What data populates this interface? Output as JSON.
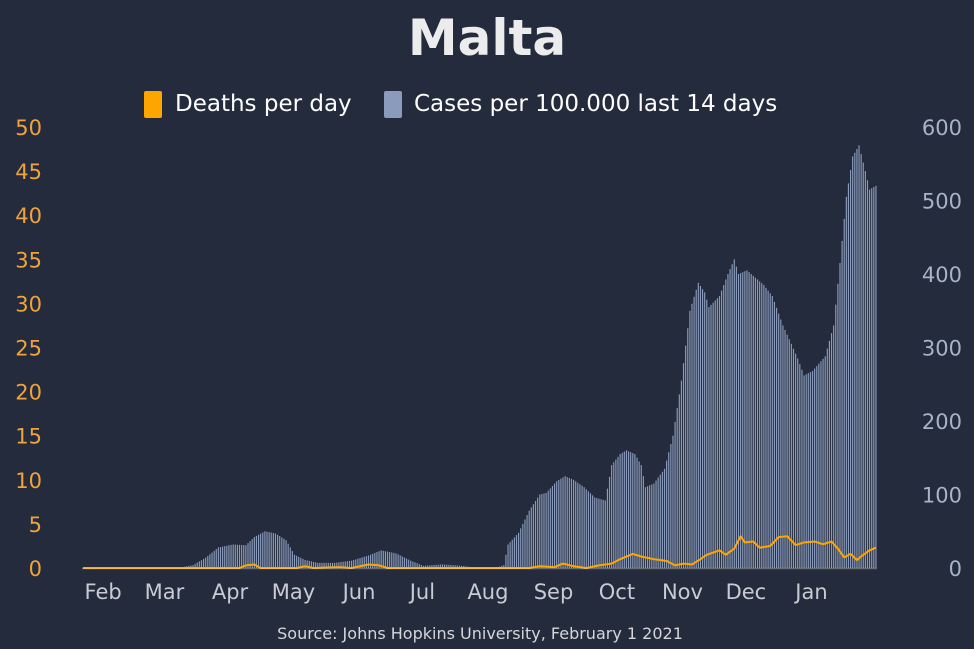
{
  "chart_data": {
    "type": "bar",
    "title": "Malta",
    "source": "Source: Johns Hopkins University, February 1 2021",
    "legend": [
      "Deaths per day",
      "Cases per 100.000 last 14 days"
    ],
    "x_ticks": [
      "Feb",
      "Mar",
      "Apr",
      "May",
      "Jun",
      "Jul",
      "Aug",
      "Sep",
      "Oct",
      "Nov",
      "Dec",
      "Jan"
    ],
    "y_left": {
      "ticks": [
        "0",
        "5",
        "10",
        "15",
        "20",
        "25",
        "30",
        "35",
        "40",
        "45",
        "50"
      ],
      "lim": [
        0,
        50
      ]
    },
    "y_right": {
      "ticks": [
        "0",
        "100",
        "200",
        "300",
        "400",
        "500",
        "600"
      ],
      "lim": [
        0,
        600
      ]
    },
    "date_start": "2020-01-22",
    "date_end": "2021-01-31",
    "colors": {
      "deaths": "#ffa500",
      "cases": "#8a9bbb",
      "left_axis": "#f0a33c",
      "right_axis": "#a7b3c7"
    },
    "series": [
      {
        "name": "Cases per 100.000 last 14 days",
        "axis": "right",
        "kind": "bars",
        "keypoints": [
          [
            "2020-01-22",
            0
          ],
          [
            "2020-03-07",
            0
          ],
          [
            "2020-03-14",
            4
          ],
          [
            "2020-03-20",
            14
          ],
          [
            "2020-03-26",
            28
          ],
          [
            "2020-04-02",
            32
          ],
          [
            "2020-04-08",
            31
          ],
          [
            "2020-04-12",
            42
          ],
          [
            "2020-04-17",
            50
          ],
          [
            "2020-04-22",
            47
          ],
          [
            "2020-04-27",
            38
          ],
          [
            "2020-05-01",
            18
          ],
          [
            "2020-05-06",
            11
          ],
          [
            "2020-05-12",
            7
          ],
          [
            "2020-05-20",
            7
          ],
          [
            "2020-05-28",
            10
          ],
          [
            "2020-06-05",
            17
          ],
          [
            "2020-06-11",
            24
          ],
          [
            "2020-06-18",
            20
          ],
          [
            "2020-06-25",
            10
          ],
          [
            "2020-07-01",
            3
          ],
          [
            "2020-07-10",
            5
          ],
          [
            "2020-07-19",
            3
          ],
          [
            "2020-07-27",
            0
          ],
          [
            "2020-08-04",
            0
          ],
          [
            "2020-08-08",
            4
          ],
          [
            "2020-08-10",
            32
          ],
          [
            "2020-08-15",
            48
          ],
          [
            "2020-08-20",
            78
          ],
          [
            "2020-08-25",
            100
          ],
          [
            "2020-08-28",
            102
          ],
          [
            "2020-09-02",
            118
          ],
          [
            "2020-09-06",
            125
          ],
          [
            "2020-09-10",
            120
          ],
          [
            "2020-09-15",
            110
          ],
          [
            "2020-09-20",
            96
          ],
          [
            "2020-09-25",
            92
          ],
          [
            "2020-09-28",
            140
          ],
          [
            "2020-10-02",
            155
          ],
          [
            "2020-10-05",
            160
          ],
          [
            "2020-10-09",
            155
          ],
          [
            "2020-10-12",
            140
          ],
          [
            "2020-10-14",
            110
          ],
          [
            "2020-10-18",
            115
          ],
          [
            "2020-10-23",
            135
          ],
          [
            "2020-10-27",
            180
          ],
          [
            "2020-10-31",
            255
          ],
          [
            "2020-11-04",
            350
          ],
          [
            "2020-11-08",
            388
          ],
          [
            "2020-11-11",
            375
          ],
          [
            "2020-11-13",
            355
          ],
          [
            "2020-11-18",
            370
          ],
          [
            "2020-11-22",
            400
          ],
          [
            "2020-11-25",
            420
          ],
          [
            "2020-11-27",
            400
          ],
          [
            "2020-12-01",
            405
          ],
          [
            "2020-12-05",
            395
          ],
          [
            "2020-12-09",
            385
          ],
          [
            "2020-12-13",
            370
          ],
          [
            "2020-12-18",
            330
          ],
          [
            "2020-12-22",
            305
          ],
          [
            "2020-12-25",
            285
          ],
          [
            "2020-12-28",
            262
          ],
          [
            "2021-01-01",
            268
          ],
          [
            "2021-01-04",
            278
          ],
          [
            "2021-01-07",
            288
          ],
          [
            "2021-01-11",
            330
          ],
          [
            "2021-01-14",
            415
          ],
          [
            "2021-01-17",
            505
          ],
          [
            "2021-01-20",
            560
          ],
          [
            "2021-01-23",
            575
          ],
          [
            "2021-01-26",
            540
          ],
          [
            "2021-01-28",
            515
          ],
          [
            "2021-01-31",
            520
          ]
        ]
      },
      {
        "name": "Deaths per day",
        "axis": "left",
        "kind": "line",
        "keypoints": [
          [
            "2020-01-22",
            0
          ],
          [
            "2020-04-05",
            0
          ],
          [
            "2020-04-08",
            0.3
          ],
          [
            "2020-04-12",
            0.4
          ],
          [
            "2020-04-15",
            0
          ],
          [
            "2020-05-02",
            0
          ],
          [
            "2020-05-06",
            0.2
          ],
          [
            "2020-05-10",
            0
          ],
          [
            "2020-05-22",
            0.1
          ],
          [
            "2020-05-28",
            0
          ],
          [
            "2020-06-05",
            0.4
          ],
          [
            "2020-06-10",
            0.3
          ],
          [
            "2020-06-14",
            0
          ],
          [
            "2020-08-20",
            0
          ],
          [
            "2020-08-25",
            0.2
          ],
          [
            "2020-09-01",
            0.1
          ],
          [
            "2020-09-05",
            0.5
          ],
          [
            "2020-09-10",
            0.2
          ],
          [
            "2020-09-16",
            0
          ],
          [
            "2020-09-22",
            0.3
          ],
          [
            "2020-09-28",
            0.5
          ],
          [
            "2020-10-02",
            1.0
          ],
          [
            "2020-10-08",
            1.6
          ],
          [
            "2020-10-12",
            1.3
          ],
          [
            "2020-10-18",
            1.0
          ],
          [
            "2020-10-24",
            0.8
          ],
          [
            "2020-10-28",
            0.3
          ],
          [
            "2020-11-01",
            0.5
          ],
          [
            "2020-11-05",
            0.4
          ],
          [
            "2020-11-09",
            1.0
          ],
          [
            "2020-11-12",
            1.5
          ],
          [
            "2020-11-18",
            2.0
          ],
          [
            "2020-11-21",
            1.5
          ],
          [
            "2020-11-25",
            2.2
          ],
          [
            "2020-11-28",
            3.6
          ],
          [
            "2020-11-30",
            2.9
          ],
          [
            "2020-12-04",
            3.0
          ],
          [
            "2020-12-07",
            2.3
          ],
          [
            "2020-12-12",
            2.5
          ],
          [
            "2020-12-16",
            3.5
          ],
          [
            "2020-12-20",
            3.6
          ],
          [
            "2020-12-24",
            2.6
          ],
          [
            "2020-12-28",
            2.9
          ],
          [
            "2021-01-02",
            3.0
          ],
          [
            "2021-01-06",
            2.7
          ],
          [
            "2021-01-10",
            3.0
          ],
          [
            "2021-01-13",
            2.2
          ],
          [
            "2021-01-16",
            1.2
          ],
          [
            "2021-01-19",
            1.6
          ],
          [
            "2021-01-22",
            0.9
          ],
          [
            "2021-01-25",
            1.5
          ],
          [
            "2021-01-28",
            2.0
          ],
          [
            "2021-01-31",
            2.3
          ]
        ]
      }
    ]
  }
}
